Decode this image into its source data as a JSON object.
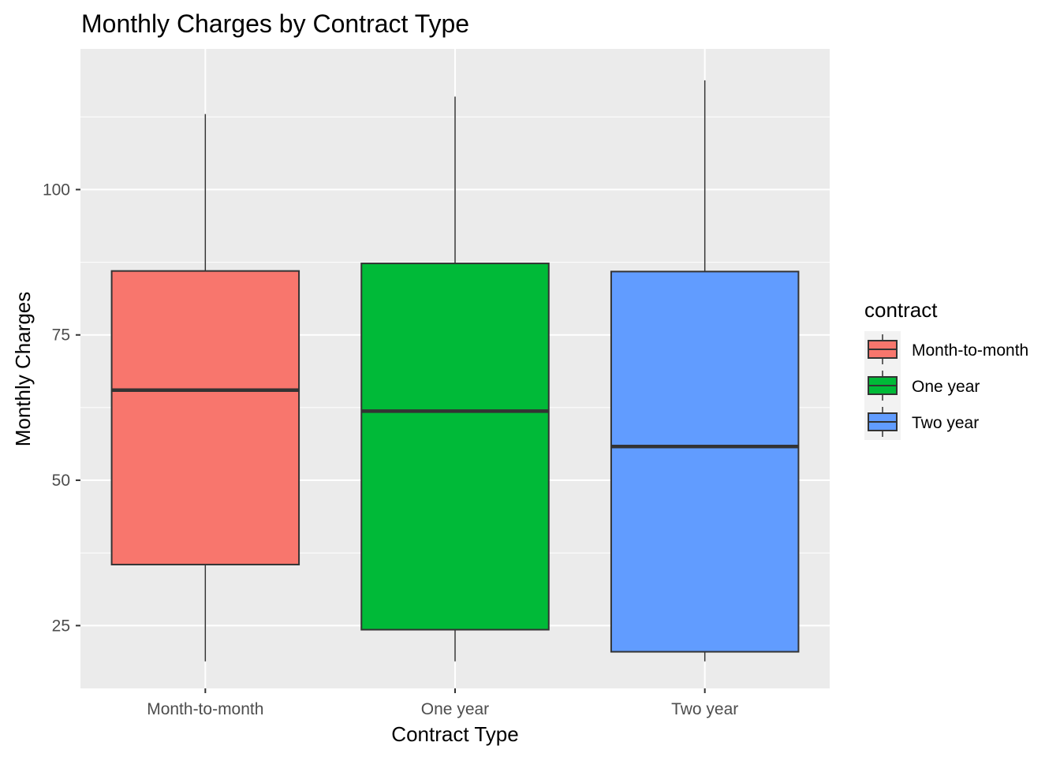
{
  "chart_data": {
    "type": "boxplot",
    "title": "Monthly Charges by Contract Type",
    "xlabel": "Contract Type",
    "ylabel": "Monthly Charges",
    "categories": [
      "Month-to-month",
      "One year",
      "Two year"
    ],
    "boxes": [
      {
        "category": "Month-to-month",
        "min": 18.85,
        "q1": 35.5,
        "median": 65.5,
        "q3": 86.0,
        "max": 113.0,
        "color": "#F8766D"
      },
      {
        "category": "One year",
        "min": 18.85,
        "q1": 24.3,
        "median": 61.9,
        "q3": 87.3,
        "max": 116.0,
        "color": "#00BA38"
      },
      {
        "category": "Two year",
        "min": 18.85,
        "q1": 20.5,
        "median": 55.8,
        "q3": 85.9,
        "max": 118.8,
        "color": "#619CFF"
      }
    ],
    "ylim": [
      14.2,
      124.2
    ],
    "yticks": [
      25,
      50,
      75,
      100
    ],
    "ytick_labels": [
      "25",
      "50",
      "75",
      "100"
    ],
    "legend": {
      "title": "contract",
      "entries": [
        "Month-to-month",
        "One year",
        "Two year"
      ],
      "position": "right"
    },
    "grid": true,
    "panel_background": "#EBEBEB",
    "grid_color": "#FFFFFF",
    "outline_color": "#333333"
  }
}
